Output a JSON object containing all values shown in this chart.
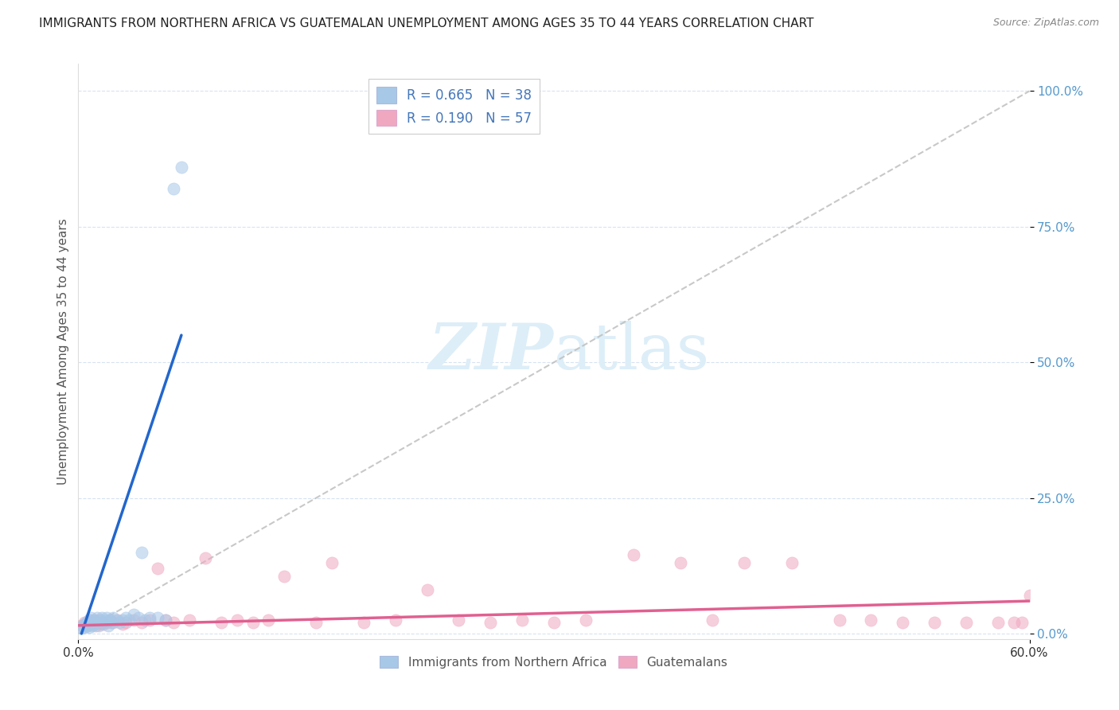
{
  "title": "IMMIGRANTS FROM NORTHERN AFRICA VS GUATEMALAN UNEMPLOYMENT AMONG AGES 35 TO 44 YEARS CORRELATION CHART",
  "source": "Source: ZipAtlas.com",
  "ylabel": "Unemployment Among Ages 35 to 44 years",
  "xlim": [
    0.0,
    0.6
  ],
  "ylim": [
    -0.01,
    1.05
  ],
  "yticks": [
    0.0,
    0.25,
    0.5,
    0.75,
    1.0
  ],
  "ytick_labels": [
    "0.0%",
    "25.0%",
    "50.0%",
    "75.0%",
    "100.0%"
  ],
  "xtick_labels": [
    "0.0%",
    "60.0%"
  ],
  "xtick_vals": [
    0.0,
    0.6
  ],
  "legend_labels": [
    "Immigrants from Northern Africa",
    "Guatemalans"
  ],
  "R_blue": 0.665,
  "N_blue": 38,
  "R_pink": 0.19,
  "N_pink": 57,
  "blue_color": "#a8c8e8",
  "pink_color": "#f0a8c0",
  "blue_line_color": "#2266cc",
  "pink_line_color": "#e06090",
  "dashed_line_color": "#bbbbbb",
  "background_color": "#ffffff",
  "watermark_color": "#ddeef8",
  "title_color": "#222222",
  "source_color": "#888888",
  "ytick_color": "#5599cc",
  "xtick_color": "#333333",
  "ylabel_color": "#555555",
  "grid_color": "#ccddee",
  "blue_scatter_x": [
    0.002,
    0.003,
    0.004,
    0.005,
    0.005,
    0.006,
    0.007,
    0.007,
    0.008,
    0.009,
    0.01,
    0.01,
    0.011,
    0.012,
    0.013,
    0.014,
    0.015,
    0.016,
    0.017,
    0.018,
    0.019,
    0.02,
    0.021,
    0.022,
    0.024,
    0.026,
    0.028,
    0.03,
    0.032,
    0.035,
    0.038,
    0.04,
    0.042,
    0.045,
    0.05,
    0.055,
    0.06,
    0.065
  ],
  "blue_scatter_y": [
    0.01,
    0.015,
    0.012,
    0.02,
    0.018,
    0.015,
    0.025,
    0.012,
    0.03,
    0.015,
    0.025,
    0.018,
    0.02,
    0.03,
    0.015,
    0.025,
    0.03,
    0.02,
    0.025,
    0.03,
    0.015,
    0.025,
    0.02,
    0.03,
    0.025,
    0.02,
    0.025,
    0.03,
    0.025,
    0.035,
    0.03,
    0.15,
    0.025,
    0.03,
    0.03,
    0.025,
    0.82,
    0.86
  ],
  "pink_scatter_x": [
    0.002,
    0.004,
    0.005,
    0.006,
    0.007,
    0.008,
    0.009,
    0.01,
    0.011,
    0.012,
    0.013,
    0.014,
    0.015,
    0.016,
    0.018,
    0.02,
    0.022,
    0.025,
    0.028,
    0.03,
    0.035,
    0.04,
    0.045,
    0.05,
    0.055,
    0.06,
    0.07,
    0.08,
    0.09,
    0.1,
    0.11,
    0.12,
    0.13,
    0.15,
    0.16,
    0.18,
    0.2,
    0.22,
    0.24,
    0.26,
    0.28,
    0.3,
    0.32,
    0.35,
    0.38,
    0.4,
    0.42,
    0.45,
    0.48,
    0.5,
    0.52,
    0.54,
    0.56,
    0.58,
    0.59,
    0.595,
    0.6
  ],
  "pink_scatter_y": [
    0.015,
    0.02,
    0.015,
    0.02,
    0.025,
    0.018,
    0.02,
    0.025,
    0.015,
    0.02,
    0.025,
    0.018,
    0.02,
    0.018,
    0.02,
    0.025,
    0.02,
    0.025,
    0.018,
    0.02,
    0.025,
    0.02,
    0.025,
    0.12,
    0.025,
    0.02,
    0.025,
    0.14,
    0.02,
    0.025,
    0.02,
    0.025,
    0.105,
    0.02,
    0.13,
    0.02,
    0.025,
    0.08,
    0.025,
    0.02,
    0.025,
    0.02,
    0.025,
    0.145,
    0.13,
    0.025,
    0.13,
    0.13,
    0.025,
    0.025,
    0.02,
    0.02,
    0.02,
    0.02,
    0.02,
    0.02,
    0.07
  ],
  "blue_line_x": [
    0.002,
    0.065
  ],
  "blue_line_y": [
    0.0,
    0.55
  ],
  "pink_line_x": [
    0.0,
    0.6
  ],
  "pink_line_y": [
    0.015,
    0.06
  ],
  "diag_line_x": [
    0.0,
    0.6
  ],
  "diag_line_y": [
    0.0,
    1.0
  ]
}
